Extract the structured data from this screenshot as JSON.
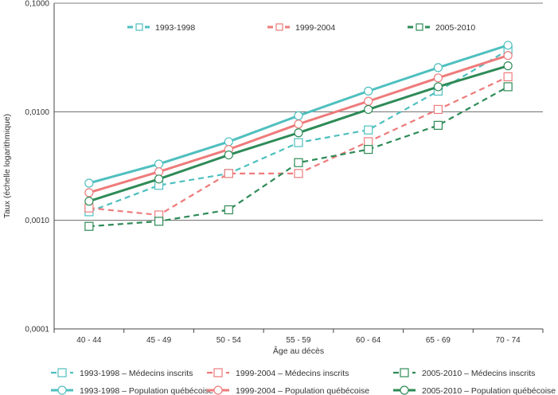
{
  "chart_data": {
    "type": "line",
    "title": "",
    "xlabel": "Âge au décès",
    "ylabel": "Taux (échelle logarithmique)",
    "y_scale": "log",
    "ylim": [
      0.0001,
      0.1
    ],
    "yticks": [
      0.0001,
      0.001,
      0.01,
      0.1
    ],
    "ytick_labels": [
      "0,0001",
      "0,0010",
      "0,0100",
      "0,1000"
    ],
    "grid": "horizontal",
    "categories": [
      "40 - 44",
      "45 - 49",
      "50 - 54",
      "55 - 59",
      "60 - 64",
      "65 - 69",
      "70 - 74"
    ],
    "top_legend": [
      {
        "label": "1993-1998",
        "color": "#4fbfbf"
      },
      {
        "label": "1999-2004",
        "color": "#ee7b7b"
      },
      {
        "label": "2005-2010",
        "color": "#2e8b57"
      }
    ],
    "series": [
      {
        "name": "1993-1998 – Médecins inscrits",
        "color": "#4fbfbf",
        "style": "dashed",
        "marker": "square",
        "values": [
          0.0012,
          0.0021,
          0.0027,
          0.0052,
          0.0068,
          0.0155,
          0.037
        ]
      },
      {
        "name": "1999-2004 – Médecins inscrits",
        "color": "#ee7b7b",
        "style": "dashed",
        "marker": "square",
        "values": [
          0.0013,
          0.00112,
          0.0027,
          0.0027,
          0.0053,
          0.0105,
          0.021
        ]
      },
      {
        "name": "2005-2010 – Médecins inscrits",
        "color": "#2e8b57",
        "style": "dashed",
        "marker": "square",
        "values": [
          0.00088,
          0.00098,
          0.00125,
          0.0034,
          0.0045,
          0.0075,
          0.017
        ]
      },
      {
        "name": "1993-1998 – Population québécoise",
        "color": "#4fbfbf",
        "style": "solid",
        "marker": "circle",
        "values": [
          0.0022,
          0.0033,
          0.0053,
          0.0092,
          0.0155,
          0.0255,
          0.041
        ]
      },
      {
        "name": "1999-2004 – Population québécoise",
        "color": "#ee7b7b",
        "style": "solid",
        "marker": "circle",
        "values": [
          0.0018,
          0.0028,
          0.0045,
          0.0077,
          0.0125,
          0.0205,
          0.033
        ]
      },
      {
        "name": "2005-2010 – Population québécoise",
        "color": "#2e8b57",
        "style": "solid",
        "marker": "circle",
        "values": [
          0.0015,
          0.0024,
          0.004,
          0.0064,
          0.0105,
          0.017,
          0.0265
        ]
      }
    ]
  }
}
